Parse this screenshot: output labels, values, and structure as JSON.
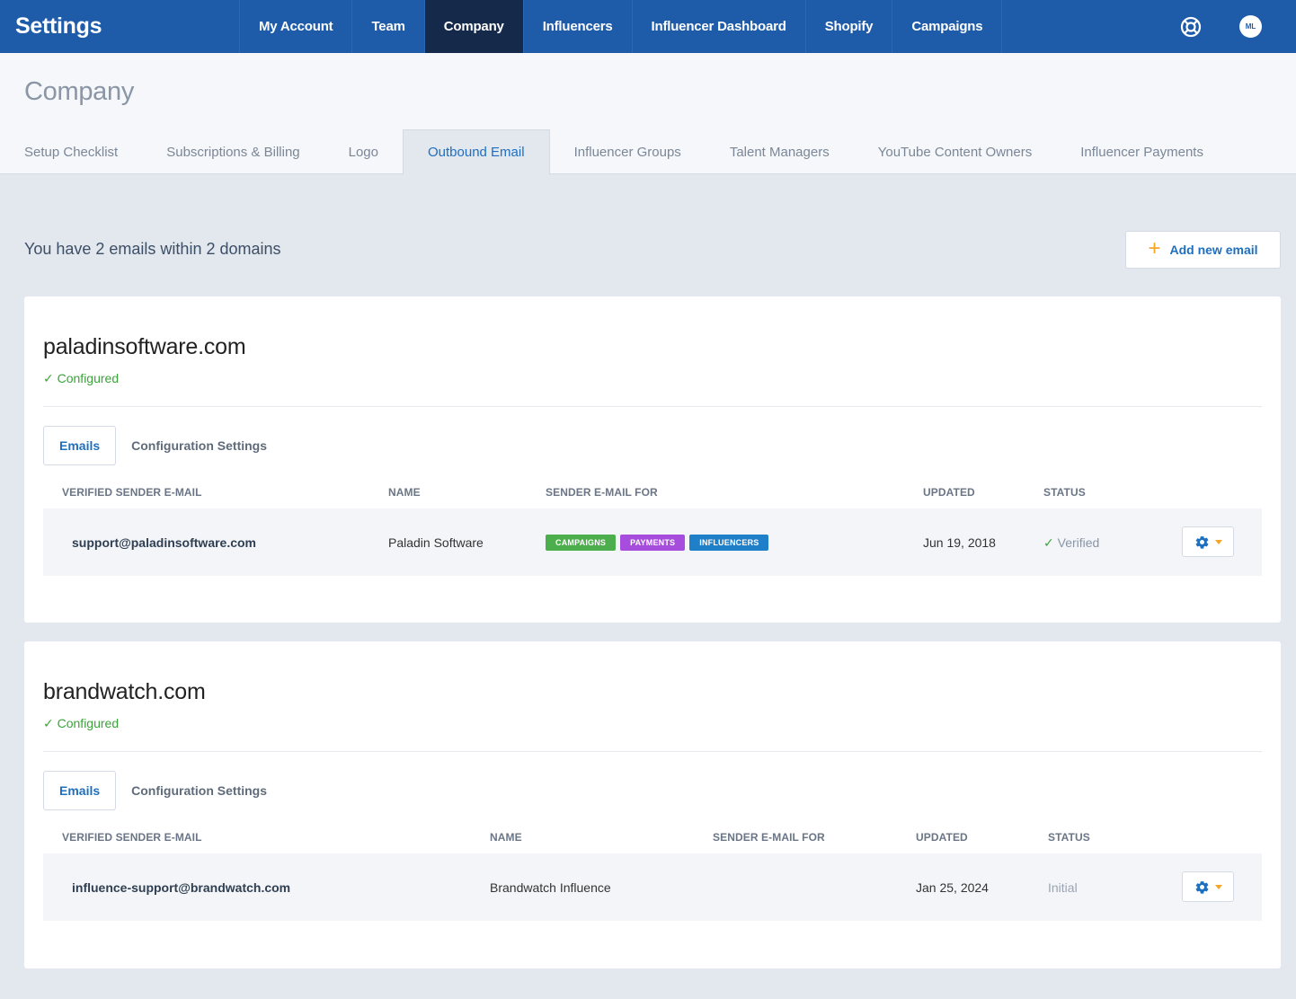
{
  "app": {
    "title": "Settings"
  },
  "nav": {
    "items": [
      {
        "label": "My Account"
      },
      {
        "label": "Team"
      },
      {
        "label": "Company",
        "active": true
      },
      {
        "label": "Influencers"
      },
      {
        "label": "Influencer Dashboard"
      },
      {
        "label": "Shopify"
      },
      {
        "label": "Campaigns"
      }
    ],
    "help_icon": "lifebuoy-icon",
    "avatar_initials": "ML"
  },
  "page": {
    "title": "Company",
    "tabs": [
      {
        "label": "Setup Checklist"
      },
      {
        "label": "Subscriptions & Billing"
      },
      {
        "label": "Logo"
      },
      {
        "label": "Outbound Email",
        "active": true
      },
      {
        "label": "Influencer Groups"
      },
      {
        "label": "Talent Managers"
      },
      {
        "label": "YouTube Content Owners"
      },
      {
        "label": "Influencer Payments"
      }
    ]
  },
  "summary": {
    "text": "You have 2 emails within 2 domains",
    "add_button": "Add new email"
  },
  "domains": [
    {
      "name": "paladinsoftware.com",
      "status": "Configured",
      "tabs": [
        "Emails",
        "Configuration Settings"
      ],
      "columns": [
        "VERIFIED SENDER E-MAIL",
        "NAME",
        "SENDER E-MAIL FOR",
        "UPDATED",
        "STATUS"
      ],
      "rows": [
        {
          "email": "support@paladinsoftware.com",
          "name": "Paladin Software",
          "tags": [
            {
              "label": "CAMPAIGNS",
              "color": "#4cae4c"
            },
            {
              "label": "PAYMENTS",
              "color": "#a64dde"
            },
            {
              "label": "INFLUENCERS",
              "color": "#1f7fc8"
            }
          ],
          "updated": "Jun 19, 2018",
          "status": "Verified"
        }
      ]
    },
    {
      "name": "brandwatch.com",
      "status": "Configured",
      "tabs": [
        "Emails",
        "Configuration Settings"
      ],
      "columns": [
        "VERIFIED SENDER E-MAIL",
        "NAME",
        "SENDER E-MAIL FOR",
        "UPDATED",
        "STATUS"
      ],
      "rows": [
        {
          "email": "influence-support@brandwatch.com",
          "name": "Brandwatch Influence",
          "tags": [],
          "updated": "Jan 25, 2024",
          "status": "Initial"
        }
      ]
    }
  ],
  "colors": {
    "nav_bg": "#1e5ba8",
    "nav_active": "#15294a",
    "accent": "#1e6fbf",
    "success": "#3aa33a",
    "caret": "#f5a623"
  }
}
